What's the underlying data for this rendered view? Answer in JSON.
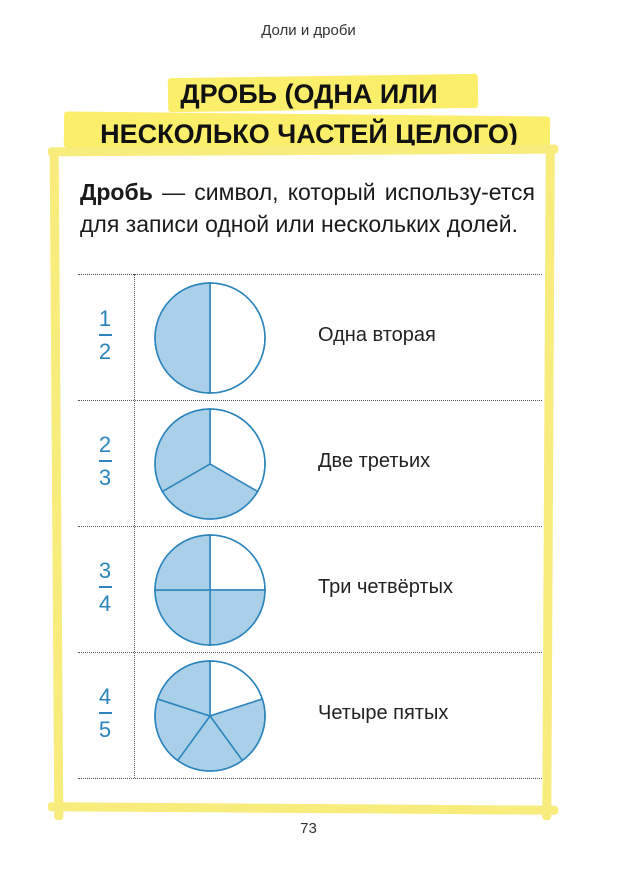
{
  "header": {
    "running_title": "Доли и дроби"
  },
  "title": {
    "line1": "ДРОБЬ (ОДНА ИЛИ",
    "line2": "НЕСКОЛЬКО ЧАСТЕЙ ЦЕЛОГО)"
  },
  "definition": {
    "term": "Дробь",
    "text": " — символ, который использу-ется для записи одной или нескольких долей."
  },
  "colors": {
    "pie_fill": "#a9cfe9",
    "pie_stroke": "#2a84bd",
    "fraction_text": "#2a84bd",
    "highlight": "#fbee6a"
  },
  "fractions": [
    {
      "numerator": "1",
      "denominator": "2",
      "label": "Одна вторая",
      "parts": 2,
      "filled": 1
    },
    {
      "numerator": "2",
      "denominator": "3",
      "label": "Две третьих",
      "parts": 3,
      "filled": 2
    },
    {
      "numerator": "3",
      "denominator": "4",
      "label": "Три четвёртых",
      "parts": 4,
      "filled": 3
    },
    {
      "numerator": "4",
      "denominator": "5",
      "label": "Четыре пятых",
      "parts": 5,
      "filled": 4
    }
  ],
  "footer": {
    "page_number": "73"
  }
}
